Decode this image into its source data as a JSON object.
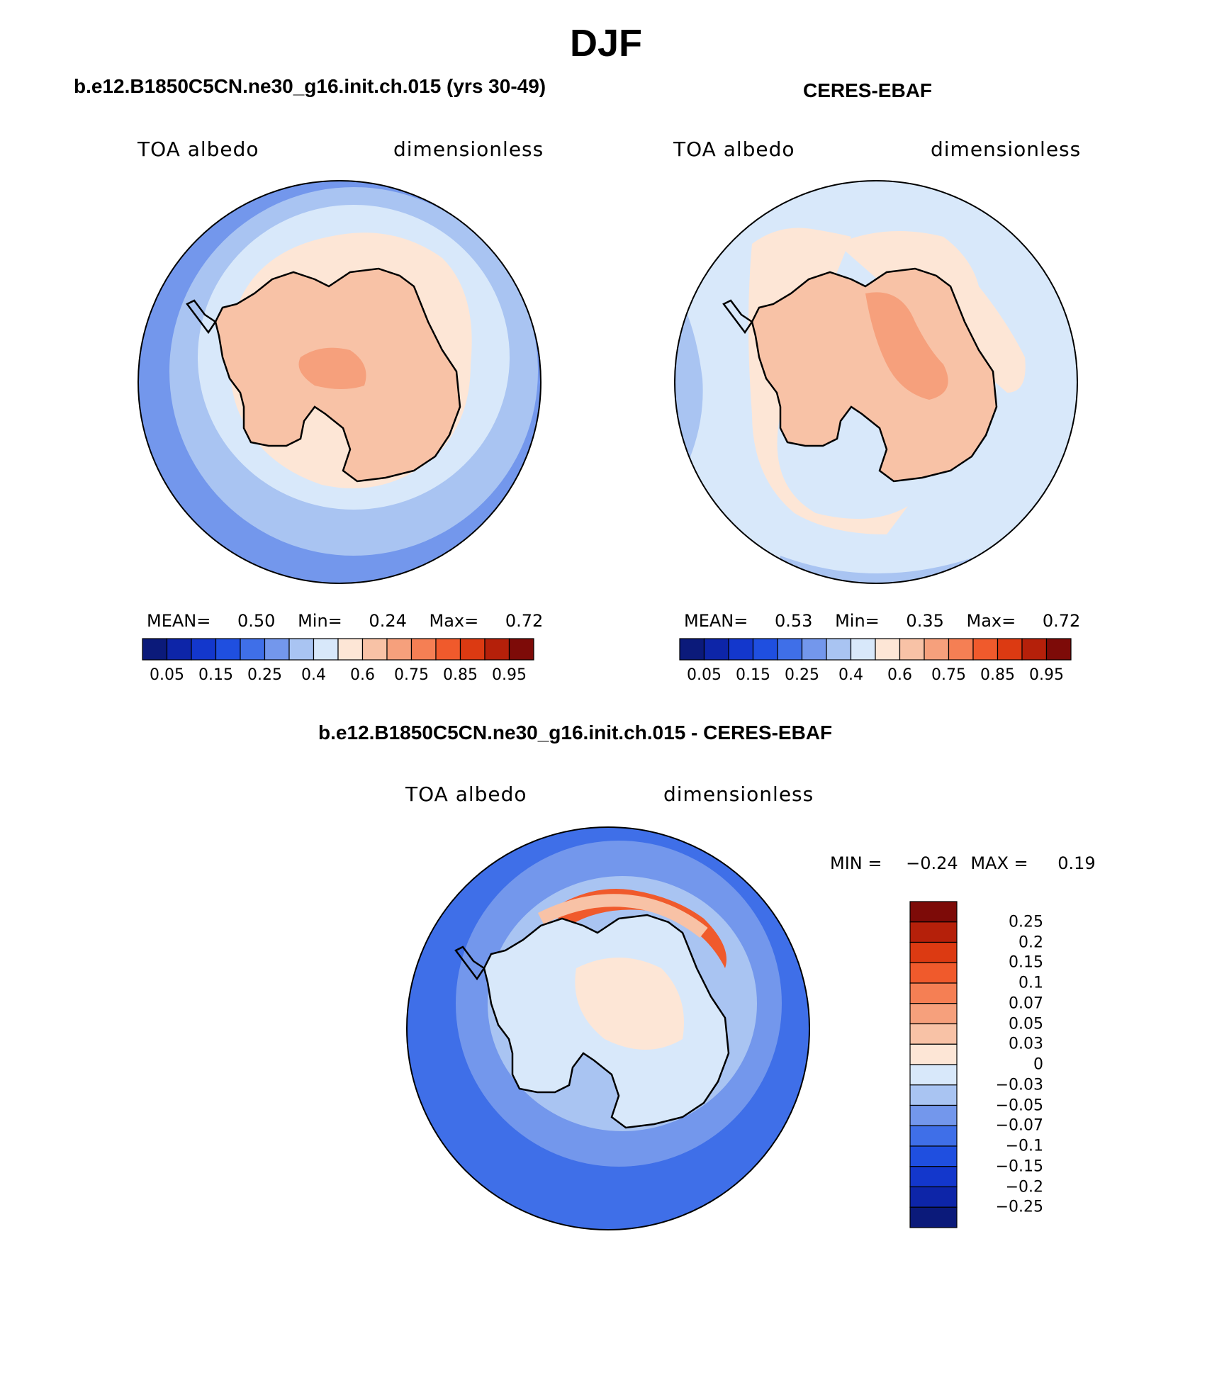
{
  "figure": {
    "title": "DJF"
  },
  "panels": [
    {
      "id": "model",
      "title": "b.e12.B1850C5CN.ne30_g16.init.ch.015 (yrs 30-49)",
      "left_label": "TOA albedo",
      "right_label": "dimensionless",
      "stats": {
        "mean_label": "MEAN=",
        "mean": "0.50",
        "min_label": "Min=",
        "min": "0.24",
        "max_label": "Max=",
        "max": "0.72"
      }
    },
    {
      "id": "obs",
      "title": "CERES-EBAF",
      "left_label": "TOA albedo",
      "right_label": "dimensionless",
      "stats": {
        "mean_label": "MEAN=",
        "mean": "0.53",
        "min_label": "Min=",
        "min": "0.35",
        "max_label": "Max=",
        "max": "0.72"
      }
    },
    {
      "id": "diff",
      "title": "b.e12.B1850C5CN.ne30_g16.init.ch.015 - CERES-EBAF",
      "left_label": "TOA albedo",
      "right_label": "dimensionless",
      "stats": {
        "min_label": "MIN =",
        "min": "−0.24",
        "max_label": "MAX =",
        "max": "0.19"
      }
    }
  ],
  "colorbar_main": {
    "colors": [
      "#0b1a7a",
      "#0d25a8",
      "#1337cc",
      "#1f4fe0",
      "#3f6fe8",
      "#7397ec",
      "#a9c4f2",
      "#d8e8fa",
      "#fde6d6",
      "#f8c2a6",
      "#f6a07c",
      "#f57f54",
      "#f05a2c",
      "#dc3a12",
      "#b5200a",
      "#7d0b08"
    ],
    "ticks": [
      "0.05",
      "0.15",
      "0.25",
      "0.4",
      "0.6",
      "0.75",
      "0.85",
      "0.95"
    ]
  },
  "colorbar_diff": {
    "colors": [
      "#7d0b08",
      "#b5200a",
      "#dc3a12",
      "#f05a2c",
      "#f57f54",
      "#f6a07c",
      "#f8c2a6",
      "#fde6d6",
      "#d8e8fa",
      "#a9c4f2",
      "#7397ec",
      "#3f6fe8",
      "#1f4fe0",
      "#1337cc",
      "#0d25a8",
      "#0b1a7a"
    ],
    "ticks": [
      "0.25",
      "0.2",
      "0.15",
      "0.1",
      "0.07",
      "0.05",
      "0.03",
      "0",
      "−0.03",
      "−0.05",
      "−0.07",
      "−0.1",
      "−0.15",
      "−0.2",
      "−0.25"
    ]
  },
  "colors": {
    "ocean_outer_model": "#a9c4f2",
    "ocean_inner_model": "#d8e8fa",
    "seaice_model": "#fde6d6",
    "land_model": "#f8c2a6",
    "land_high": "#f6a07c",
    "ocean_obs": "#d8e8fa",
    "ocean_diff": "#3f6fe8",
    "ocean_diff_light": "#7397ec",
    "diff_land": "#d8e8fa",
    "diff_pos": "#f05a2c",
    "diff_pos_light": "#fde6d6"
  }
}
